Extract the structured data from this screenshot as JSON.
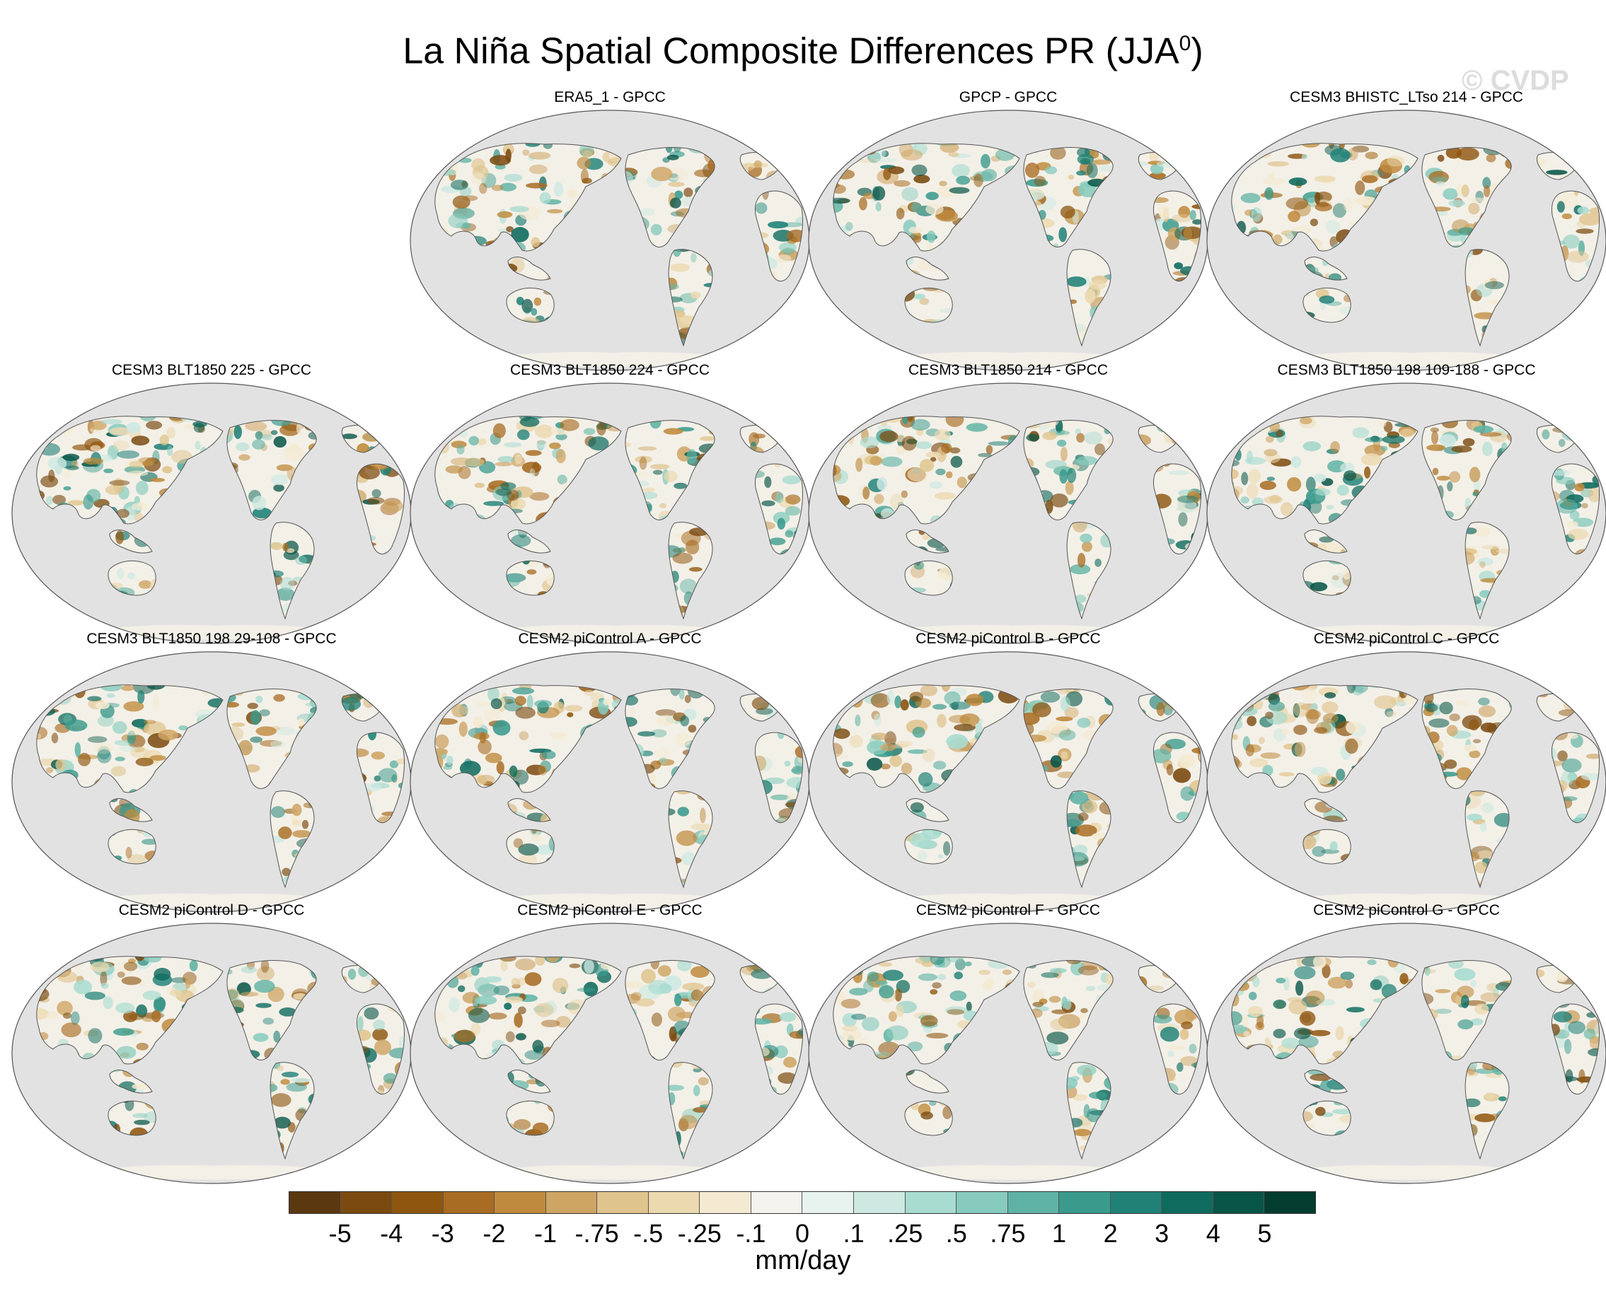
{
  "title": {
    "text": "La Niña Spatial Composite Differences PR (JJA",
    "superscript": "0",
    "close": ")"
  },
  "watermark": "© CVDP",
  "panels": [
    {
      "title": "ERA5_1 - GPCC"
    },
    {
      "title": "GPCP - GPCC"
    },
    {
      "title": "CESM3 BHISTC_LTso 214 - GPCC"
    },
    {
      "title": "CESM3 BLT1850 225 - GPCC"
    },
    {
      "title": "CESM3 BLT1850 224 - GPCC"
    },
    {
      "title": "CESM3 BLT1850 214 - GPCC"
    },
    {
      "title": "CESM3 BLT1850 198 109-188 - GPCC"
    },
    {
      "title": "CESM3 BLT1850 198 29-108 - GPCC"
    },
    {
      "title": "CESM2 piControl A - GPCC"
    },
    {
      "title": "CESM2 piControl B - GPCC"
    },
    {
      "title": "CESM2 piControl C - GPCC"
    },
    {
      "title": "CESM2 piControl D - GPCC"
    },
    {
      "title": "CESM2 piControl E - GPCC"
    },
    {
      "title": "CESM2 piControl F - GPCC"
    },
    {
      "title": "CESM2 piControl G - GPCC"
    }
  ],
  "colorbar": {
    "unit": "mm/day",
    "tick_labels": [
      "-5",
      "-4",
      "-3",
      "-2",
      "-1",
      "-.75",
      "-.5",
      "-.25",
      "-.1",
      "0",
      ".1",
      ".25",
      ".5",
      ".75",
      "1",
      "2",
      "3",
      "4",
      "5"
    ],
    "colors": [
      "#5c3810",
      "#7b4a0f",
      "#8f560f",
      "#a86c22",
      "#bf8a3c",
      "#cfa564",
      "#e0c48d",
      "#ecd9b0",
      "#f4ead2",
      "#f5f3ee",
      "#e8f3f0",
      "#cde9e2",
      "#a9dcd1",
      "#86cbbd",
      "#5fb3a4",
      "#3a9a8c",
      "#208177",
      "#0f6b5e",
      "#075547",
      "#023d30"
    ]
  },
  "map_colors": {
    "ocean": "#e2e2e2",
    "land": "#f3f0e8",
    "coast": "#555555"
  }
}
